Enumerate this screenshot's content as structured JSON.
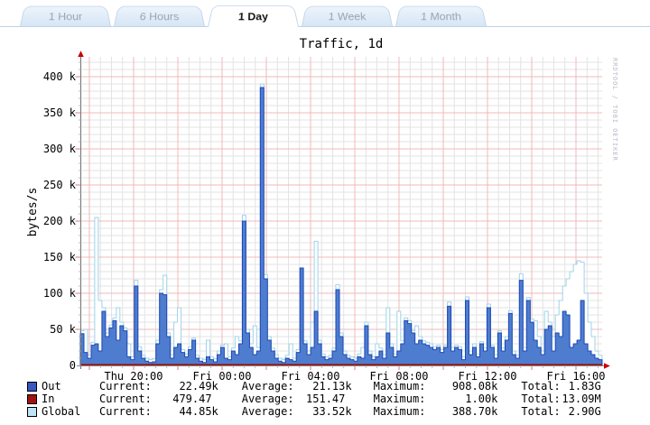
{
  "tabs": {
    "items": [
      {
        "label": "1 Hour",
        "active": false
      },
      {
        "label": "6 Hours",
        "active": false
      },
      {
        "label": "1 Day",
        "active": true
      },
      {
        "label": "1 Week",
        "active": false
      },
      {
        "label": "1 Month",
        "active": false
      }
    ]
  },
  "chart": {
    "watermark": "RRDTOOL / TOBI OETIKER"
  },
  "chart_data": {
    "type": "area",
    "title": "Traffic, 1d",
    "ylabel": "bytes/s",
    "x_ticks": [
      "Thu 20:00",
      "Fri 00:00",
      "Fri 04:00",
      "Fri 08:00",
      "Fri 12:00",
      "Fri 16:00"
    ],
    "x_tick_interval": "4h",
    "y_ticks": [
      {
        "label": "0",
        "value": 0
      },
      {
        "label": "50 k",
        "value": 50
      },
      {
        "label": "100 k",
        "value": 100
      },
      {
        "label": "150 k",
        "value": 150
      },
      {
        "label": "200 k",
        "value": 200
      },
      {
        "label": "250 k",
        "value": 250
      },
      {
        "label": "300 k",
        "value": 300
      },
      {
        "label": "350 k",
        "value": 350
      },
      {
        "label": "400 k",
        "value": 400
      }
    ],
    "ylim_k": [
      0,
      427
    ],
    "grid": {
      "minor_color": "#e3e3e3",
      "major_color": "#f0b8b8",
      "h_minor_step_k": 10,
      "h_major_step_k": 50,
      "v_minor": "30min",
      "v_major": "2h"
    },
    "axis_color": "#8a8a8a",
    "arrow_color": "#cc0000",
    "series": [
      {
        "name": "Out",
        "stroke": "#1c48b4",
        "fill": "#4e7ccf",
        "unit": "bytes/s (k)",
        "values_k": [
          44,
          18,
          10,
          28,
          30,
          20,
          75,
          40,
          52,
          62,
          35,
          55,
          48,
          12,
          8,
          110,
          20,
          10,
          6,
          4,
          5,
          30,
          100,
          98,
          40,
          10,
          25,
          30,
          18,
          12,
          22,
          35,
          10,
          6,
          4,
          12,
          8,
          5,
          15,
          25,
          10,
          8,
          20,
          15,
          30,
          200,
          45,
          25,
          15,
          20,
          385,
          120,
          35,
          20,
          10,
          6,
          4,
          10,
          8,
          6,
          18,
          135,
          30,
          15,
          25,
          75,
          30,
          12,
          8,
          10,
          20,
          105,
          40,
          15,
          10,
          8,
          6,
          12,
          10,
          55,
          15,
          8,
          12,
          20,
          10,
          45,
          25,
          12,
          20,
          30,
          62,
          58,
          45,
          30,
          35,
          30,
          28,
          25,
          22,
          25,
          18,
          25,
          82,
          20,
          25,
          22,
          8,
          90,
          15,
          25,
          12,
          30,
          20,
          80,
          25,
          10,
          45,
          20,
          35,
          72,
          15,
          10,
          118,
          20,
          90,
          60,
          35,
          25,
          15,
          50,
          55,
          20,
          45,
          40,
          75,
          70,
          25,
          30,
          35,
          90,
          30,
          20,
          15,
          10,
          8
        ]
      },
      {
        "name": "In",
        "stroke": "#9c1006",
        "fill": "#9c1006",
        "unit": "bytes/s (k)",
        "constant_k": 0.4
      },
      {
        "name": "Global",
        "stroke": "#9fd3e8",
        "fill": "#ffffff",
        "unit": "bytes/s (k)",
        "values_k": [
          48,
          50,
          14,
          32,
          205,
          90,
          80,
          45,
          56,
          66,
          80,
          60,
          52,
          30,
          12,
          118,
          26,
          14,
          10,
          8,
          9,
          35,
          105,
          125,
          45,
          15,
          60,
          80,
          22,
          16,
          26,
          38,
          14,
          10,
          8,
          35,
          12,
          9,
          20,
          28,
          30,
          12,
          24,
          40,
          34,
          208,
          50,
          30,
          55,
          25,
          390,
          126,
          40,
          24,
          15,
          10,
          8,
          14,
          30,
          10,
          22,
          90,
          34,
          20,
          60,
          172,
          35,
          16,
          12,
          14,
          24,
          112,
          45,
          20,
          14,
          12,
          10,
          16,
          25,
          60,
          20,
          12,
          30,
          24,
          15,
          80,
          30,
          16,
          75,
          34,
          66,
          62,
          48,
          55,
          40,
          34,
          32,
          30,
          26,
          28,
          22,
          28,
          88,
          25,
          28,
          26,
          12,
          95,
          20,
          30,
          16,
          33,
          24,
          85,
          28,
          15,
          48,
          24,
          40,
          76,
          20,
          14,
          127,
          25,
          94,
          64,
          62,
          40,
          20,
          75,
          60,
          40,
          70,
          90,
          110,
          120,
          130,
          140,
          145,
          143,
          100,
          60,
          40,
          20,
          14
        ]
      }
    ]
  },
  "legend": {
    "headers": {
      "current": "Current:",
      "average": "Average:",
      "maximum": "Maximum:",
      "total": "Total:"
    },
    "rows": [
      {
        "name": "Out",
        "swatch": "#3658c0",
        "current": "22.49k",
        "average": "21.13k",
        "maximum": "908.08k",
        "total": "1.83G"
      },
      {
        "name": "In",
        "swatch": "#a31212",
        "current": "479.47 ",
        "average": "151.47 ",
        "maximum": "1.00k",
        "total": "13.09M"
      },
      {
        "name": "Global",
        "swatch": "#bfe5f4",
        "current": "44.85k",
        "average": "33.52k",
        "maximum": "388.70k",
        "total": "2.90G"
      }
    ]
  }
}
